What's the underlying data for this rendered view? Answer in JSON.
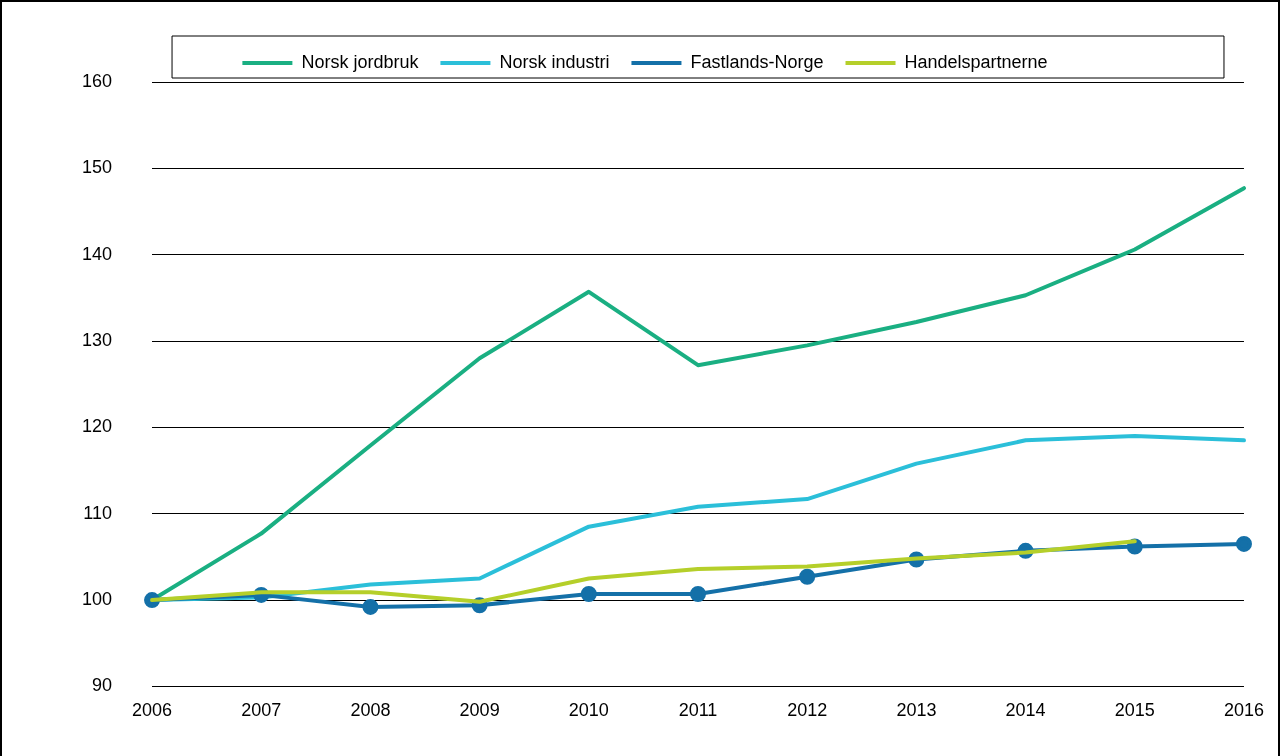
{
  "chart_data": {
    "type": "line",
    "categories": [
      "2006",
      "2007",
      "2008",
      "2009",
      "2010",
      "2011",
      "2012",
      "2013",
      "2014",
      "2015",
      "2016"
    ],
    "series": [
      {
        "name": "Norsk jordbruk",
        "color": "#1aaf82",
        "values": [
          100,
          107.7,
          117.9,
          128.0,
          135.7,
          127.2,
          129.5,
          132.2,
          135.3,
          140.6,
          147.7
        ]
      },
      {
        "name": "Norsk industri",
        "color": "#2bbfd9",
        "values": [
          100,
          100.3,
          101.8,
          102.5,
          108.5,
          110.8,
          111.7,
          115.8,
          118.5,
          119.0,
          118.5
        ]
      },
      {
        "name": "Fastlands-Norge",
        "color": "#1470a8",
        "marker": "circle",
        "values": [
          100,
          100.6,
          99.2,
          99.4,
          100.7,
          100.7,
          102.7,
          104.7,
          105.7,
          106.2,
          106.5
        ]
      },
      {
        "name": "Handelspartnerne",
        "color": "#b5cf2a",
        "values": [
          100,
          100.9,
          100.9,
          99.8,
          102.5,
          103.6,
          103.9,
          104.8,
          105.5,
          106.8,
          null
        ]
      }
    ],
    "ylim": [
      90,
      160
    ],
    "yticks": [
      90,
      100,
      110,
      120,
      130,
      140,
      150,
      160
    ],
    "grid": "y",
    "legend": "top",
    "marker": "none",
    "line_style": "solid"
  }
}
